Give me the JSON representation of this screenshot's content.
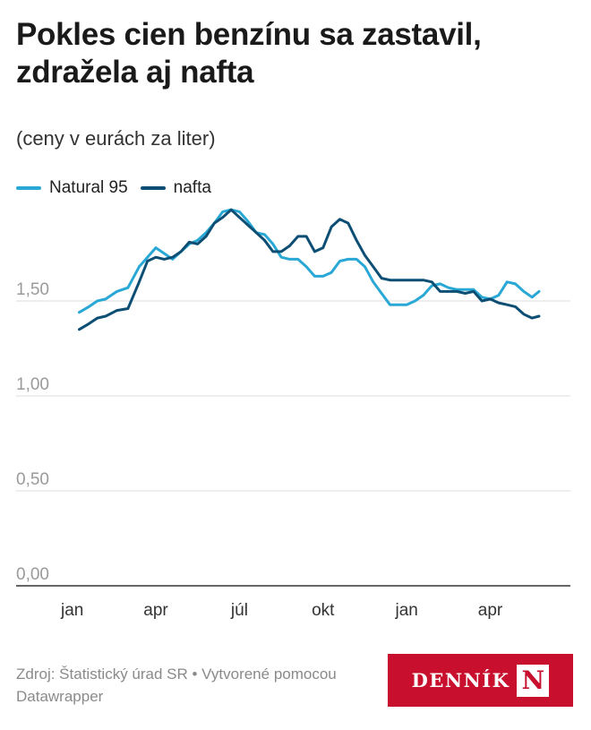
{
  "header": {
    "title": "Pokles cien benzínu sa zastavil, zdražela aj nafta",
    "subtitle": "(ceny v eurách za liter)"
  },
  "footer": {
    "source": "Zdroj: Štatistický úrad SR • Vytvorené pomocou Datawrapper"
  },
  "logo": {
    "text": "DENNÍK",
    "mark": "N",
    "background": "#c8102e"
  },
  "chart_data": {
    "type": "line",
    "title": "Pokles cien benzínu sa zastavil, zdražela aj nafta",
    "subtitle": "(ceny v eurách za liter)",
    "xlabel": "",
    "ylabel": "",
    "ylim": [
      0,
      2.0
    ],
    "y_ticks": [
      0,
      0.5,
      1.0,
      1.5
    ],
    "y_tick_labels": [
      "0,00",
      "0,50",
      "1,00",
      "1,50"
    ],
    "x_ticks": [
      {
        "label": "jan",
        "t": 0
      },
      {
        "label": "apr",
        "t": 3
      },
      {
        "label": "júl",
        "t": 6
      },
      {
        "label": "okt",
        "t": 9
      },
      {
        "label": "jan",
        "t": 12
      },
      {
        "label": "apr",
        "t": 15
      }
    ],
    "x_unit": "months from first January",
    "xlim": [
      -0.6,
      17.2
    ],
    "grid": true,
    "legend_position": "top-left",
    "series": [
      {
        "name": "Natural 95",
        "color": "#29a8d6",
        "x": [
          0.25,
          0.6,
          0.9,
          1.2,
          1.6,
          2.0,
          2.4,
          2.7,
          3.0,
          3.3,
          3.6,
          3.9,
          4.2,
          4.5,
          4.8,
          5.1,
          5.4,
          5.7,
          6.0,
          6.3,
          6.6,
          6.9,
          7.2,
          7.5,
          7.8,
          8.1,
          8.4,
          8.7,
          9.0,
          9.3,
          9.6,
          9.9,
          10.2,
          10.5,
          10.8,
          11.1,
          11.4,
          11.7,
          12.0,
          12.3,
          12.6,
          12.9,
          13.2,
          13.5,
          13.8,
          14.1,
          14.4,
          14.7,
          15.0,
          15.3,
          15.6,
          15.9,
          16.2,
          16.5,
          16.75
        ],
        "y": [
          1.44,
          1.47,
          1.5,
          1.51,
          1.55,
          1.57,
          1.68,
          1.73,
          1.78,
          1.75,
          1.72,
          1.76,
          1.8,
          1.82,
          1.86,
          1.91,
          1.97,
          1.98,
          1.97,
          1.92,
          1.86,
          1.85,
          1.8,
          1.73,
          1.72,
          1.72,
          1.68,
          1.63,
          1.63,
          1.65,
          1.71,
          1.72,
          1.72,
          1.68,
          1.6,
          1.54,
          1.48,
          1.48,
          1.48,
          1.5,
          1.53,
          1.58,
          1.59,
          1.57,
          1.56,
          1.56,
          1.56,
          1.52,
          1.51,
          1.53,
          1.6,
          1.59,
          1.55,
          1.52,
          1.55
        ]
      },
      {
        "name": "nafta",
        "color": "#0d4f74",
        "x": [
          0.25,
          0.6,
          0.9,
          1.2,
          1.6,
          2.0,
          2.4,
          2.7,
          3.0,
          3.3,
          3.6,
          3.9,
          4.2,
          4.5,
          4.8,
          5.1,
          5.4,
          5.7,
          6.0,
          6.3,
          6.6,
          6.9,
          7.2,
          7.5,
          7.8,
          8.1,
          8.4,
          8.7,
          9.0,
          9.3,
          9.6,
          9.9,
          10.2,
          10.5,
          10.8,
          11.1,
          11.4,
          11.7,
          12.0,
          12.3,
          12.6,
          12.9,
          13.2,
          13.5,
          13.8,
          14.1,
          14.4,
          14.7,
          15.0,
          15.3,
          15.6,
          15.9,
          16.2,
          16.5,
          16.75
        ],
        "y": [
          1.35,
          1.38,
          1.41,
          1.42,
          1.45,
          1.46,
          1.6,
          1.71,
          1.73,
          1.72,
          1.73,
          1.76,
          1.81,
          1.8,
          1.84,
          1.91,
          1.94,
          1.98,
          1.94,
          1.9,
          1.86,
          1.82,
          1.76,
          1.76,
          1.79,
          1.84,
          1.84,
          1.76,
          1.78,
          1.89,
          1.93,
          1.91,
          1.82,
          1.74,
          1.68,
          1.62,
          1.61,
          1.61,
          1.61,
          1.61,
          1.61,
          1.6,
          1.55,
          1.55,
          1.55,
          1.54,
          1.55,
          1.5,
          1.51,
          1.49,
          1.48,
          1.47,
          1.43,
          1.41,
          1.42
        ]
      }
    ]
  }
}
